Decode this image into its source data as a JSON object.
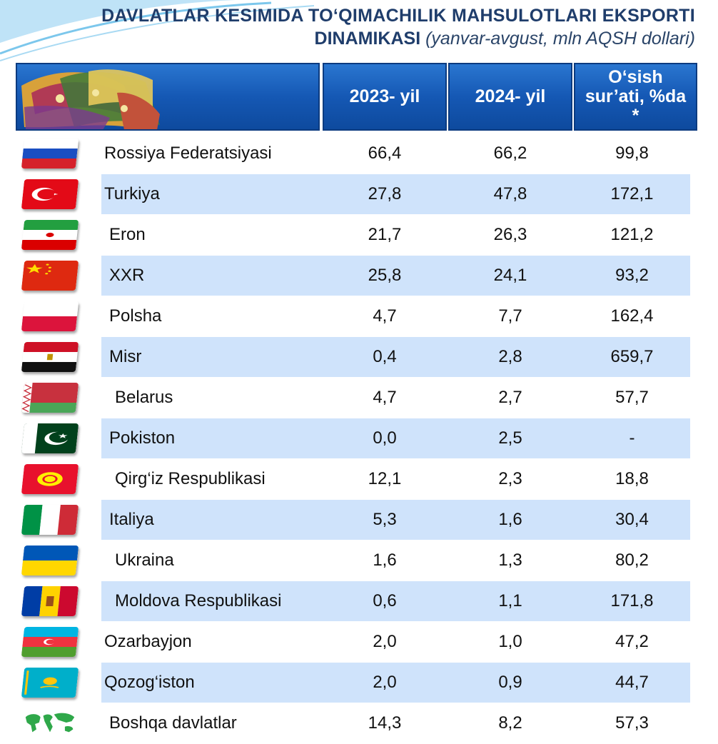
{
  "title": {
    "line1": "DAVLATLAR KESIMIDA TO‘QIMACHILIK MAHSULOTLARI EKSPORTI",
    "line2_bold": "DINAMIKASI",
    "line2_italic": "(yanvar-avgust, mln AQSH dollari)"
  },
  "columns": {
    "y2023": "2023- yil",
    "y2024": "2024- yil",
    "growth_l1": "O‘sish",
    "growth_l2": "sur’ati, %da",
    "growth_l3": "*"
  },
  "colors": {
    "header_blue": "#1558b4",
    "row_band": "#cfe3fb",
    "title_text": "#1f3d6b"
  },
  "rows": [
    {
      "country": "Rossiya Federatsiyasi",
      "flag": "russia-flag-icon",
      "v2023": "66,4",
      "v2024": "66,2",
      "growth": "99,8"
    },
    {
      "country": "Turkiya",
      "flag": "turkey-flag-icon",
      "v2023": "27,8",
      "v2024": "47,8",
      "growth": "172,1"
    },
    {
      "country": "Eron",
      "flag": "iran-flag-icon",
      "v2023": "21,7",
      "v2024": "26,3",
      "growth": "121,2"
    },
    {
      "country": "XXR",
      "flag": "china-flag-icon",
      "v2023": "25,8",
      "v2024": "24,1",
      "growth": "93,2"
    },
    {
      "country": "Polsha",
      "flag": "poland-flag-icon",
      "v2023": "4,7",
      "v2024": "7,7",
      "growth": "162,4"
    },
    {
      "country": "Misr",
      "flag": "egypt-flag-icon",
      "v2023": "0,4",
      "v2024": "2,8",
      "growth": "659,7"
    },
    {
      "country": "Belarus",
      "flag": "belarus-flag-icon",
      "v2023": "4,7",
      "v2024": "2,7",
      "growth": "57,7"
    },
    {
      "country": "Pokiston",
      "flag": "pakistan-flag-icon",
      "v2023": "0,0",
      "v2024": "2,5",
      "growth": "-"
    },
    {
      "country": "Qirg‘iz Respublikasi",
      "flag": "kyrgyzstan-flag-icon",
      "v2023": "12,1",
      "v2024": "2,3",
      "growth": "18,8"
    },
    {
      "country": "Italiya",
      "flag": "italy-flag-icon",
      "v2023": "5,3",
      "v2024": "1,6",
      "growth": "30,4"
    },
    {
      "country": "Ukraina",
      "flag": "ukraine-flag-icon",
      "v2023": "1,6",
      "v2024": "1,3",
      "growth": "80,2"
    },
    {
      "country": "Moldova Respublikasi",
      "flag": "moldova-flag-icon",
      "v2023": "0,6",
      "v2024": "1,1",
      "growth": "171,8"
    },
    {
      "country": "Ozarbayjon",
      "flag": "azerbaijan-flag-icon",
      "v2023": "2,0",
      "v2024": "1,0",
      "growth": "47,2"
    },
    {
      "country": "Qozog‘iston",
      "flag": "kazakhstan-flag-icon",
      "v2023": "2,0",
      "v2024": "0,9",
      "growth": "44,7"
    },
    {
      "country": "Boshqa davlatlar",
      "flag": "world-map-icon",
      "v2023": "14,3",
      "v2024": "8,2",
      "growth": "57,3"
    }
  ]
}
